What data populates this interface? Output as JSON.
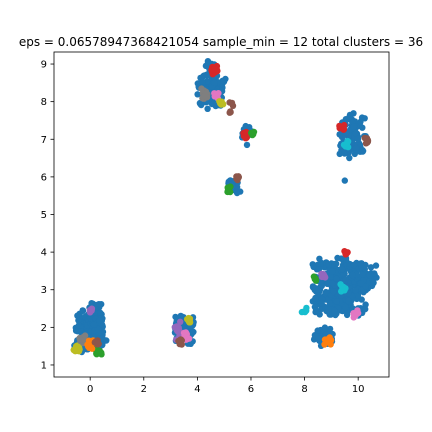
{
  "chart_data": {
    "type": "scatter",
    "title": "eps = 0.0657894736842105​4 sample_min = 12 total clusters = 36",
    "xlabel": "",
    "ylabel": "",
    "xlim": [
      -1.35,
      11.15
    ],
    "ylim": [
      0.68,
      9.32
    ],
    "x_ticks": [
      0,
      2,
      4,
      6,
      8,
      10
    ],
    "y_ticks": [
      1,
      2,
      3,
      4,
      5,
      6,
      7,
      8,
      9
    ],
    "grid": false,
    "legend": "none",
    "base_color": "#1f77b4",
    "palette": [
      "#ff7f0e",
      "#2ca02c",
      "#d62728",
      "#9467bd",
      "#8c564b",
      "#e377c2",
      "#7f7f7f",
      "#bcbd22",
      "#17becf"
    ],
    "blobs": [
      {
        "cx": 0.0,
        "cy": 1.9,
        "rx": 0.55,
        "ry": 0.55,
        "n": 150,
        "color": "#1f77b4"
      },
      {
        "cx": 0.25,
        "cy": 2.35,
        "rx": 0.3,
        "ry": 0.3,
        "n": 40,
        "color": "#1f77b4"
      },
      {
        "cx": -0.4,
        "cy": 1.5,
        "rx": 0.25,
        "ry": 0.2,
        "n": 30,
        "color": "#1f77b4"
      },
      {
        "cx": 3.5,
        "cy": 1.95,
        "rx": 0.4,
        "ry": 0.4,
        "n": 70,
        "color": "#1f77b4"
      },
      {
        "cx": 4.5,
        "cy": 8.3,
        "rx": 0.55,
        "ry": 0.5,
        "n": 110,
        "color": "#1f77b4"
      },
      {
        "cx": 4.5,
        "cy": 8.9,
        "rx": 0.25,
        "ry": 0.2,
        "n": 20,
        "color": "#1f77b4"
      },
      {
        "cx": 5.85,
        "cy": 7.2,
        "rx": 0.2,
        "ry": 0.15,
        "n": 14,
        "color": "#1f77b4"
      },
      {
        "cx": 5.35,
        "cy": 5.75,
        "rx": 0.25,
        "ry": 0.2,
        "n": 30,
        "color": "#1f77b4"
      },
      {
        "cx": 9.8,
        "cy": 7.1,
        "rx": 0.5,
        "ry": 0.6,
        "n": 100,
        "color": "#1f77b4"
      },
      {
        "cx": 9.3,
        "cy": 3.05,
        "rx": 1.0,
        "ry": 0.8,
        "n": 350,
        "color": "#1f77b4"
      },
      {
        "cx": 10.2,
        "cy": 3.3,
        "rx": 0.5,
        "ry": 0.4,
        "n": 60,
        "color": "#1f77b4"
      },
      {
        "cx": 8.7,
        "cy": 1.75,
        "rx": 0.4,
        "ry": 0.25,
        "n": 50,
        "color": "#1f77b4"
      },
      {
        "cx": 0.3,
        "cy": 1.4,
        "rx": 0.15,
        "ry": 0.12,
        "n": 12,
        "color": "#2ca02c"
      },
      {
        "cx": -0.5,
        "cy": 1.45,
        "rx": 0.12,
        "ry": 0.1,
        "n": 10,
        "color": "#bcbd22"
      },
      {
        "cx": -0.3,
        "cy": 1.7,
        "rx": 0.15,
        "ry": 0.12,
        "n": 10,
        "color": "#7f7f7f"
      },
      {
        "cx": 0.05,
        "cy": 1.55,
        "rx": 0.15,
        "ry": 0.12,
        "n": 12,
        "color": "#ff7f0e"
      },
      {
        "cx": 0.25,
        "cy": 1.6,
        "rx": 0.12,
        "ry": 0.1,
        "n": 8,
        "color": "#8c564b"
      },
      {
        "cx": 0.05,
        "cy": 2.45,
        "rx": 0.1,
        "ry": 0.08,
        "n": 8,
        "color": "#9467bd"
      },
      {
        "cx": 3.3,
        "cy": 1.9,
        "rx": 0.2,
        "ry": 0.25,
        "n": 15,
        "color": "#9467bd"
      },
      {
        "cx": 3.55,
        "cy": 1.75,
        "rx": 0.15,
        "ry": 0.15,
        "n": 10,
        "color": "#e377c2"
      },
      {
        "cx": 3.7,
        "cy": 2.2,
        "rx": 0.1,
        "ry": 0.1,
        "n": 8,
        "color": "#bcbd22"
      },
      {
        "cx": 3.35,
        "cy": 1.6,
        "rx": 0.12,
        "ry": 0.1,
        "n": 8,
        "color": "#8c564b"
      },
      {
        "cx": 4.3,
        "cy": 8.2,
        "rx": 0.15,
        "ry": 0.15,
        "n": 10,
        "color": "#7f7f7f"
      },
      {
        "cx": 4.75,
        "cy": 8.2,
        "rx": 0.12,
        "ry": 0.12,
        "n": 8,
        "color": "#e377c2"
      },
      {
        "cx": 4.85,
        "cy": 7.95,
        "rx": 0.12,
        "ry": 0.1,
        "n": 8,
        "color": "#bcbd22"
      },
      {
        "cx": 4.6,
        "cy": 8.85,
        "rx": 0.18,
        "ry": 0.15,
        "n": 14,
        "color": "#d62728"
      },
      {
        "cx": 5.25,
        "cy": 7.85,
        "rx": 0.12,
        "ry": 0.15,
        "n": 6,
        "color": "#8c564b"
      },
      {
        "cx": 5.8,
        "cy": 7.1,
        "rx": 0.1,
        "ry": 0.1,
        "n": 8,
        "color": "#d62728"
      },
      {
        "cx": 6.05,
        "cy": 7.15,
        "rx": 0.08,
        "ry": 0.08,
        "n": 6,
        "color": "#2ca02c"
      },
      {
        "cx": 5.2,
        "cy": 5.65,
        "rx": 0.15,
        "ry": 0.12,
        "n": 10,
        "color": "#2ca02c"
      },
      {
        "cx": 5.5,
        "cy": 5.95,
        "rx": 0.12,
        "ry": 0.1,
        "n": 8,
        "color": "#8c564b"
      },
      {
        "cx": 9.4,
        "cy": 7.3,
        "rx": 0.12,
        "ry": 0.12,
        "n": 6,
        "color": "#d62728"
      },
      {
        "cx": 10.3,
        "cy": 6.95,
        "rx": 0.15,
        "ry": 0.12,
        "n": 8,
        "color": "#8c564b"
      },
      {
        "cx": 9.55,
        "cy": 6.9,
        "rx": 0.12,
        "ry": 0.12,
        "n": 8,
        "color": "#17becf"
      },
      {
        "cx": 9.55,
        "cy": 4.0,
        "rx": 0.1,
        "ry": 0.08,
        "n": 6,
        "color": "#d62728"
      },
      {
        "cx": 9.45,
        "cy": 3.05,
        "rx": 0.12,
        "ry": 0.12,
        "n": 8,
        "color": "#17becf"
      },
      {
        "cx": 8.7,
        "cy": 3.4,
        "rx": 0.1,
        "ry": 0.1,
        "n": 6,
        "color": "#9467bd"
      },
      {
        "cx": 8.4,
        "cy": 3.3,
        "rx": 0.08,
        "ry": 0.08,
        "n": 5,
        "color": "#2ca02c"
      },
      {
        "cx": 9.9,
        "cy": 2.35,
        "rx": 0.15,
        "ry": 0.12,
        "n": 8,
        "color": "#e377c2"
      },
      {
        "cx": 8.0,
        "cy": 2.5,
        "rx": 0.12,
        "ry": 0.1,
        "n": 6,
        "color": "#17becf"
      },
      {
        "cx": 8.85,
        "cy": 1.65,
        "rx": 0.15,
        "ry": 0.12,
        "n": 8,
        "color": "#ff7f0e"
      }
    ],
    "single_points": [
      {
        "x": 9.5,
        "y": 5.9,
        "color": "#1f77b4"
      },
      {
        "x": 5.85,
        "y": 6.85,
        "color": "#1f77b4"
      },
      {
        "x": 0.6,
        "y": 1.65,
        "color": "#1f77b4"
      }
    ]
  }
}
